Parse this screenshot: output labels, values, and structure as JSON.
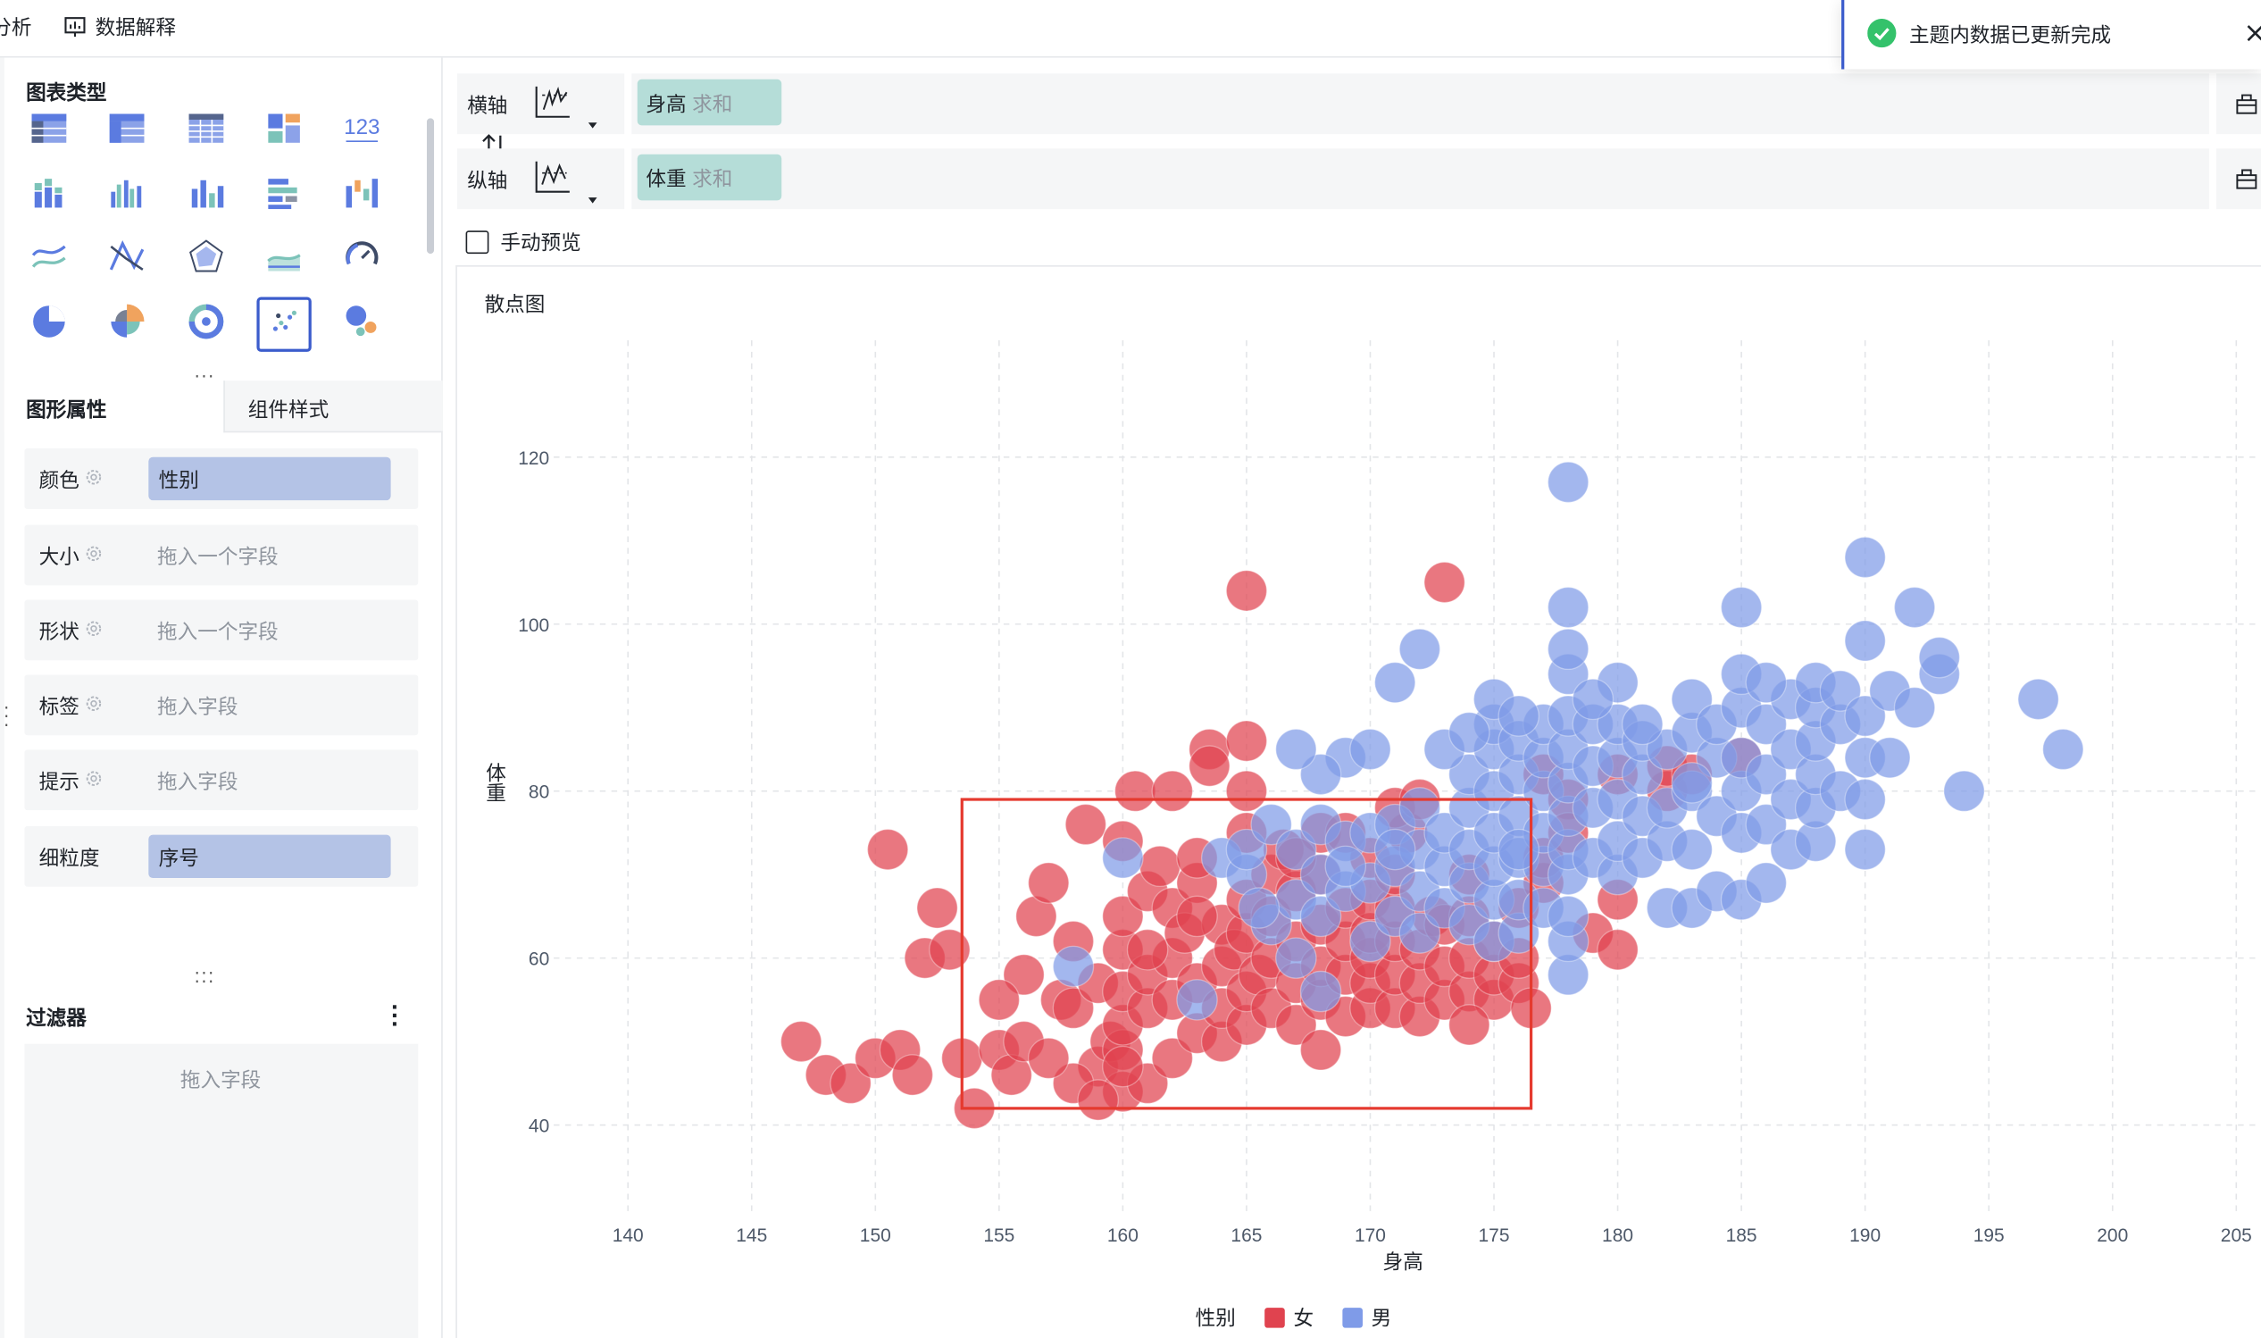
{
  "topbar": {
    "analysis_label": "分析",
    "data_explain_label": "数据解释"
  },
  "toast": {
    "message": "主题内数据已更新完成"
  },
  "chart_types": {
    "title": "图表类型",
    "items": [
      {
        "icon": "table-icon"
      },
      {
        "icon": "pivot-table-icon"
      },
      {
        "icon": "detail-table-icon"
      },
      {
        "icon": "block-chart-icon"
      },
      {
        "icon": "kpi-number-icon",
        "text": "123"
      },
      {
        "icon": "stacked-bar-icon"
      },
      {
        "icon": "grouped-bar-icon"
      },
      {
        "icon": "column-chart-icon"
      },
      {
        "icon": "horizontal-bar-icon"
      },
      {
        "icon": "waterfall-icon"
      },
      {
        "icon": "line-chart-icon"
      },
      {
        "icon": "parallel-lines-icon"
      },
      {
        "icon": "radar-icon"
      },
      {
        "icon": "area-chart-icon"
      },
      {
        "icon": "gauge-icon"
      },
      {
        "icon": "pie-chart-icon"
      },
      {
        "icon": "rose-chart-icon"
      },
      {
        "icon": "donut-chart-icon"
      },
      {
        "icon": "scatter-chart-icon",
        "selected": true
      },
      {
        "icon": "bubble-chart-icon"
      }
    ]
  },
  "tabs": {
    "graphic_props": "图形属性",
    "component_style": "组件样式"
  },
  "props": [
    {
      "label": "颜色",
      "value": "性别",
      "placeholder": ""
    },
    {
      "label": "大小",
      "value": "",
      "placeholder": "拖入一个字段"
    },
    {
      "label": "形状",
      "value": "",
      "placeholder": "拖入一个字段"
    },
    {
      "label": "标签",
      "value": "",
      "placeholder": "拖入字段"
    },
    {
      "label": "提示",
      "value": "",
      "placeholder": "拖入字段"
    },
    {
      "label": "细粒度",
      "value": "序号",
      "placeholder": ""
    }
  ],
  "filter": {
    "title": "过滤器",
    "placeholder": "拖入字段"
  },
  "axes": {
    "x": {
      "label": "横轴",
      "field": "身高",
      "agg": "求和"
    },
    "y": {
      "label": "纵轴",
      "field": "体重",
      "agg": "求和"
    }
  },
  "manual_preview": {
    "label": "手动预览",
    "checked": false
  },
  "colors": {
    "female": "#e0434f",
    "male": "#7f9be8",
    "accent": "#3b5ccc",
    "highlight": "#e53a2f"
  },
  "chart_data": {
    "type": "scatter",
    "title": "散点图",
    "xlabel": "身高",
    "ylabel": "体重",
    "xlim": [
      137,
      206
    ],
    "ylim": [
      29,
      134
    ],
    "x_ticks": [
      140,
      145,
      150,
      155,
      160,
      165,
      170,
      175,
      180,
      185,
      190,
      195,
      200,
      205
    ],
    "y_ticks": [
      40,
      60,
      80,
      100,
      120
    ],
    "legend_title": "性别",
    "legend": [
      {
        "name": "女",
        "color": "#e0434f"
      },
      {
        "name": "男",
        "color": "#7f9be8"
      }
    ],
    "highlight_region": {
      "x": [
        153.5,
        176.5
      ],
      "y": [
        42,
        79
      ]
    },
    "series": [
      {
        "name": "女",
        "color": "#e0434f",
        "points": [
          [
            147,
            50
          ],
          [
            148,
            46
          ],
          [
            149,
            45
          ],
          [
            150,
            48
          ],
          [
            151,
            49
          ],
          [
            151.5,
            46
          ],
          [
            152,
            60
          ],
          [
            152.5,
            66
          ],
          [
            150.5,
            73
          ],
          [
            153,
            61
          ],
          [
            153.5,
            48
          ],
          [
            154,
            42
          ],
          [
            155,
            49
          ],
          [
            155.5,
            46
          ],
          [
            156,
            50
          ],
          [
            156,
            58
          ],
          [
            156.5,
            65
          ],
          [
            157,
            69
          ],
          [
            157.5,
            55
          ],
          [
            158,
            54
          ],
          [
            158,
            62
          ],
          [
            158.5,
            76
          ],
          [
            159,
            47
          ],
          [
            159.5,
            50
          ],
          [
            159,
            57
          ],
          [
            160,
            44
          ],
          [
            160,
            49
          ],
          [
            160,
            52
          ],
          [
            160,
            56
          ],
          [
            160,
            61
          ],
          [
            160,
            65
          ],
          [
            160,
            74
          ],
          [
            160.5,
            80
          ],
          [
            161,
            45
          ],
          [
            161,
            54
          ],
          [
            161,
            58
          ],
          [
            161,
            68
          ],
          [
            161.5,
            71
          ],
          [
            162,
            80
          ],
          [
            162,
            48
          ],
          [
            162,
            55
          ],
          [
            162,
            60
          ],
          [
            162,
            66
          ],
          [
            162.5,
            63
          ],
          [
            163,
            51
          ],
          [
            163,
            57
          ],
          [
            163,
            69
          ],
          [
            163,
            72
          ],
          [
            163.5,
            85
          ],
          [
            163.5,
            83
          ],
          [
            164,
            50
          ],
          [
            164,
            54
          ],
          [
            164,
            59
          ],
          [
            164,
            64
          ],
          [
            164.5,
            61
          ],
          [
            165,
            52
          ],
          [
            165,
            56
          ],
          [
            165,
            63
          ],
          [
            165,
            67
          ],
          [
            165,
            75
          ],
          [
            165,
            80
          ],
          [
            165,
            86
          ],
          [
            165,
            104
          ],
          [
            165.5,
            58
          ],
          [
            166,
            54
          ],
          [
            166,
            60
          ],
          [
            166,
            65
          ],
          [
            166,
            70
          ],
          [
            166.5,
            73
          ],
          [
            167,
            52
          ],
          [
            167,
            57
          ],
          [
            167,
            62
          ],
          [
            167,
            68
          ],
          [
            168,
            49
          ],
          [
            168,
            55
          ],
          [
            168,
            59
          ],
          [
            168,
            64
          ],
          [
            168,
            70
          ],
          [
            168,
            75
          ],
          [
            169,
            53
          ],
          [
            169,
            58
          ],
          [
            169,
            62
          ],
          [
            169,
            66
          ],
          [
            170,
            54
          ],
          [
            170,
            57
          ],
          [
            170,
            60
          ],
          [
            170,
            63
          ],
          [
            170,
            67
          ],
          [
            170,
            72
          ],
          [
            171,
            54
          ],
          [
            171,
            58
          ],
          [
            171,
            62
          ],
          [
            171,
            66
          ],
          [
            171,
            70
          ],
          [
            171.5,
            75
          ],
          [
            172,
            53
          ],
          [
            172,
            57
          ],
          [
            172,
            61
          ],
          [
            172.5,
            65
          ],
          [
            173,
            55
          ],
          [
            173,
            59
          ],
          [
            173,
            64
          ],
          [
            173,
            105
          ],
          [
            174,
            56
          ],
          [
            174,
            60
          ],
          [
            174,
            65
          ],
          [
            174,
            70
          ],
          [
            175,
            55
          ],
          [
            175,
            58
          ],
          [
            175,
            62
          ],
          [
            176,
            57
          ],
          [
            176,
            60
          ],
          [
            176,
            66
          ],
          [
            177,
            69
          ],
          [
            177,
            72
          ],
          [
            177,
            82
          ],
          [
            178,
            79
          ],
          [
            178,
            75
          ],
          [
            179,
            63
          ],
          [
            180,
            67
          ],
          [
            180,
            82
          ],
          [
            180,
            61
          ],
          [
            182,
            80
          ],
          [
            182,
            83
          ],
          [
            183,
            82
          ],
          [
            185,
            84
          ],
          [
            158,
            45
          ],
          [
            159,
            43
          ],
          [
            160,
            47
          ],
          [
            157,
            48
          ],
          [
            155,
            55
          ],
          [
            161,
            61
          ],
          [
            163,
            65
          ],
          [
            167,
            72
          ],
          [
            169,
            75
          ],
          [
            171,
            78
          ],
          [
            172,
            79
          ],
          [
            174,
            52
          ],
          [
            176.5,
            54
          ]
        ]
      },
      {
        "name": "男",
        "color": "#7f9be8",
        "points": [
          [
            160,
            72
          ],
          [
            158,
            59
          ],
          [
            163,
            55
          ],
          [
            164,
            72
          ],
          [
            165,
            70
          ],
          [
            165,
            73
          ],
          [
            166,
            64
          ],
          [
            166,
            76
          ],
          [
            167,
            60
          ],
          [
            167,
            67
          ],
          [
            167,
            73
          ],
          [
            168,
            56
          ],
          [
            168,
            65
          ],
          [
            168,
            70
          ],
          [
            168,
            76
          ],
          [
            169,
            74
          ],
          [
            169,
            68
          ],
          [
            170,
            62
          ],
          [
            170,
            69
          ],
          [
            170,
            75
          ],
          [
            171,
            65
          ],
          [
            171,
            71
          ],
          [
            171,
            76
          ],
          [
            172,
            63
          ],
          [
            172,
            68
          ],
          [
            172,
            73
          ],
          [
            172,
            78
          ],
          [
            173,
            66
          ],
          [
            173,
            71
          ],
          [
            173,
            75
          ],
          [
            174,
            64
          ],
          [
            174,
            69
          ],
          [
            174,
            73
          ],
          [
            174,
            78
          ],
          [
            174,
            82
          ],
          [
            175,
            62
          ],
          [
            175,
            67
          ],
          [
            175,
            71
          ],
          [
            175,
            75
          ],
          [
            175,
            80
          ],
          [
            175,
            85
          ],
          [
            175,
            88
          ],
          [
            175,
            91
          ],
          [
            176,
            63
          ],
          [
            176,
            67
          ],
          [
            176,
            72
          ],
          [
            176,
            77
          ],
          [
            176,
            82
          ],
          [
            176,
            86
          ],
          [
            177,
            66
          ],
          [
            177,
            71
          ],
          [
            177,
            75
          ],
          [
            177,
            80
          ],
          [
            177,
            84
          ],
          [
            177,
            88
          ],
          [
            178,
            58
          ],
          [
            178,
            62
          ],
          [
            178,
            65
          ],
          [
            178,
            70
          ],
          [
            178,
            73
          ],
          [
            178,
            77
          ],
          [
            178,
            81
          ],
          [
            178,
            85
          ],
          [
            178,
            89
          ],
          [
            178,
            94
          ],
          [
            178,
            97
          ],
          [
            178,
            102
          ],
          [
            178,
            117
          ],
          [
            179,
            72
          ],
          [
            179,
            78
          ],
          [
            179,
            83
          ],
          [
            179,
            88
          ],
          [
            180,
            70
          ],
          [
            180,
            74
          ],
          [
            180,
            79
          ],
          [
            180,
            84
          ],
          [
            180,
            88
          ],
          [
            180,
            93
          ],
          [
            181,
            72
          ],
          [
            181,
            77
          ],
          [
            181,
            82
          ],
          [
            181,
            86
          ],
          [
            182,
            66
          ],
          [
            182,
            74
          ],
          [
            182,
            78
          ],
          [
            182,
            85
          ],
          [
            183,
            66
          ],
          [
            183,
            73
          ],
          [
            183,
            80
          ],
          [
            183,
            87
          ],
          [
            183,
            91
          ],
          [
            184,
            68
          ],
          [
            184,
            77
          ],
          [
            184,
            84
          ],
          [
            184,
            88
          ],
          [
            185,
            67
          ],
          [
            185,
            75
          ],
          [
            185,
            80
          ],
          [
            185,
            84
          ],
          [
            185,
            90
          ],
          [
            185,
            94
          ],
          [
            185,
            102
          ],
          [
            186,
            69
          ],
          [
            186,
            76
          ],
          [
            186,
            82
          ],
          [
            186,
            88
          ],
          [
            187,
            73
          ],
          [
            187,
            79
          ],
          [
            187,
            85
          ],
          [
            187,
            91
          ],
          [
            188,
            74
          ],
          [
            188,
            78
          ],
          [
            188,
            82
          ],
          [
            188,
            86
          ],
          [
            188,
            90
          ],
          [
            188,
            93
          ],
          [
            189,
            80
          ],
          [
            189,
            88
          ],
          [
            189,
            92
          ],
          [
            190,
            73
          ],
          [
            190,
            79
          ],
          [
            190,
            84
          ],
          [
            190,
            89
          ],
          [
            190,
            98
          ],
          [
            190,
            108
          ],
          [
            191,
            84
          ],
          [
            191,
            92
          ],
          [
            192,
            90
          ],
          [
            192,
            102
          ],
          [
            193,
            94
          ],
          [
            193,
            96
          ],
          [
            194,
            80
          ],
          [
            197,
            91
          ],
          [
            198,
            85
          ],
          [
            176,
            89
          ],
          [
            181,
            88
          ],
          [
            179,
            91
          ],
          [
            183,
            81
          ],
          [
            186,
            93
          ],
          [
            172,
            97
          ],
          [
            171,
            93
          ],
          [
            169,
            84
          ],
          [
            168,
            82
          ],
          [
            167,
            85
          ],
          [
            170,
            85
          ],
          [
            173,
            85
          ],
          [
            176,
            73
          ],
          [
            174,
            87
          ],
          [
            165.5,
            66
          ],
          [
            169,
            71
          ],
          [
            171,
            73
          ]
        ]
      }
    ]
  }
}
